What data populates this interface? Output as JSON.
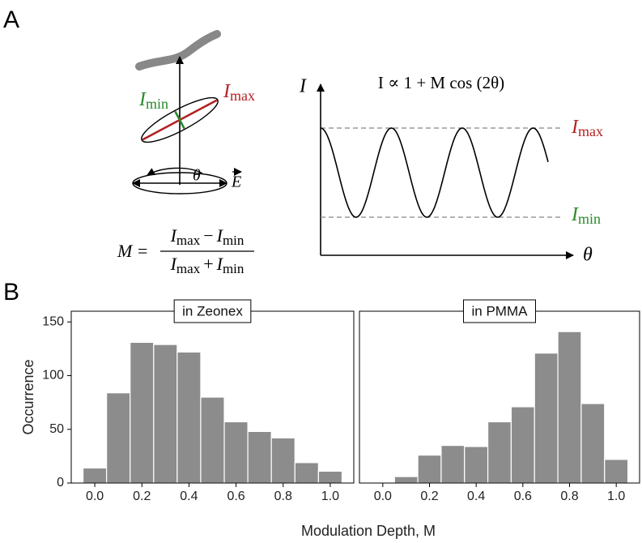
{
  "panel_labels": [
    "A",
    "B"
  ],
  "sketch": {
    "imin": {
      "symbol": "I",
      "subscript": "min"
    },
    "imax": {
      "symbol": "I",
      "subscript": "max"
    },
    "angle": "θ",
    "field": "E"
  },
  "formula": {
    "lhs": "M",
    "equals": "=",
    "numerator": {
      "a": "I",
      "a_sub": "max",
      "op": "−",
      "b": "I",
      "b_sub": "min"
    },
    "denominator": {
      "a": "I",
      "a_sub": "max",
      "op": "+",
      "b": "I",
      "b_sub": "min"
    }
  },
  "graph": {
    "y_axis": "I",
    "x_axis": "θ",
    "equation": "I ∝ 1 + M cos (2θ)",
    "imax": {
      "symbol": "I",
      "subscript": "max"
    },
    "imin": {
      "symbol": "I",
      "subscript": "min"
    }
  },
  "xlabel": "Modulation Depth, M",
  "ylabel": "Occurrence",
  "chart_data": [
    {
      "type": "histogram",
      "title": "in Zeonex",
      "color": "#8c8c8c",
      "bins": [
        -0.05,
        0.05,
        0.15,
        0.25,
        0.35,
        0.45,
        0.55,
        0.65,
        0.75,
        0.85,
        0.95,
        1.05
      ],
      "values": [
        14,
        84,
        131,
        129,
        122,
        80,
        57,
        48,
        42,
        19,
        11
      ],
      "xlim": [
        -0.1,
        1.1
      ],
      "ylim": [
        0,
        160
      ],
      "xticks": [
        {
          "value": 0,
          "label": "0.0"
        },
        0.2,
        0.4,
        0.6,
        0.8,
        {
          "value": 1,
          "label": "1.0"
        }
      ],
      "yticks": [
        0,
        50,
        100,
        150
      ]
    },
    {
      "type": "histogram",
      "title": "in PMMA",
      "color": "#8c8c8c",
      "bins": [
        -0.05,
        0.05,
        0.15,
        0.25,
        0.35,
        0.45,
        0.55,
        0.65,
        0.75,
        0.85,
        0.95,
        1.05
      ],
      "values": [
        0,
        6,
        26,
        35,
        34,
        57,
        71,
        121,
        141,
        74,
        22
      ],
      "xlim": [
        -0.1,
        1.1
      ],
      "ylim": [
        0,
        160
      ],
      "xticks": [
        {
          "value": 0,
          "label": "0.0"
        },
        0.2,
        0.4,
        0.6,
        0.8,
        {
          "value": 1,
          "label": "1.0"
        }
      ]
    }
  ]
}
